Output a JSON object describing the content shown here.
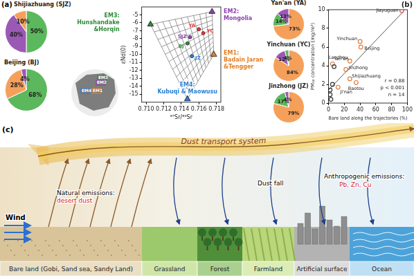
{
  "chart_data": [
    {
      "type": "pie",
      "title": "Shijiazhuang (SJZ)",
      "values": [
        50,
        40,
        10
      ],
      "colors": [
        "#5cb85c",
        "#9b59b6",
        "#f5a05a"
      ],
      "value_labels": [
        "50%",
        "40%",
        "10%"
      ],
      "data_labels": true
    },
    {
      "type": "pie",
      "title": "Beijing (BJ)",
      "values": [
        68,
        28,
        4
      ],
      "colors": [
        "#5cb85c",
        "#f5a05a",
        "#9b59b6"
      ],
      "value_labels": [
        "68%",
        "28%",
        "4%"
      ],
      "data_labels": true
    },
    {
      "type": "pie",
      "title": "Yan'an (YA)",
      "values": [
        73,
        14,
        13
      ],
      "colors": [
        "#f5a05a",
        "#5cb85c",
        "#9b59b6"
      ],
      "value_labels": [
        "73%",
        "14%",
        "13%"
      ],
      "data_labels": true
    },
    {
      "type": "pie",
      "title": "Yinchuan (YC)",
      "values": [
        84,
        12,
        4
      ],
      "colors": [
        "#f5a05a",
        "#9b59b6",
        "#5cb85c"
      ],
      "value_labels": [
        "84%",
        "12%",
        "4%"
      ],
      "data_labels": true
    },
    {
      "type": "pie",
      "title": "Jinzhong (JZ)",
      "values": [
        79,
        17,
        4
      ],
      "colors": [
        "#f5a05a",
        "#5cb85c",
        "#9b59b6"
      ],
      "value_labels": [
        "79%",
        "17%",
        "4%"
      ],
      "data_labels": true
    },
    {
      "type": "scatter",
      "label": "(a)",
      "x_label": "⁸⁷Sr/⁸⁶Sr",
      "y_label": "εNd(0)",
      "xlim": [
        0.7095,
        0.7185
      ],
      "ylim": [
        -16,
        -4
      ],
      "xticks": [
        {
          "value": 0.71,
          "label": "0.710"
        },
        {
          "value": 0.712,
          "label": "0.712"
        },
        {
          "value": 0.714,
          "label": "0.714"
        },
        {
          "value": 0.716,
          "label": "0.716"
        },
        {
          "value": 0.718,
          "label": "0.718"
        }
      ],
      "yticks": [
        -5,
        -6,
        -7,
        -8,
        -9,
        -10,
        -11,
        -12,
        -13,
        -14,
        -15
      ],
      "grid": false,
      "marker": "triangle",
      "end_members": [
        {
          "label": [
            "EM3:",
            "Hunshandake",
            "&Horqin"
          ],
          "map_label": "EM3",
          "x": 0.7105,
          "y": -6.2,
          "color": "#2e8b3a"
        },
        {
          "label": [
            "EM2:",
            "Mongolia"
          ],
          "map_label": "EM2",
          "x": 0.7175,
          "y": -4.6,
          "color": "#8e44ad"
        },
        {
          "label": [
            "EM1:",
            "Badain Jaran",
            "&Tengger"
          ],
          "map_label": "EM1",
          "x": 0.7177,
          "y": -10.0,
          "color": "#e67e22"
        },
        {
          "label": [
            "EM4:",
            "Kubuqi & Maowusu"
          ],
          "map_label": "EM4",
          "x": 0.7147,
          "y": -15.6,
          "color": "#2a7fd4"
        }
      ],
      "samples": {
        "labels": [
          "YC",
          "YA",
          "SJZ",
          "BJ",
          "JZ"
        ],
        "x": [
          0.7165,
          0.716,
          0.715,
          0.7147,
          0.7152
        ],
        "y": [
          -7.3,
          -6.8,
          -7.8,
          -8.6,
          -10.2
        ],
        "colors": [
          "#e53935",
          "#e53935",
          "#8e44ad",
          "#2e8b3a",
          "#2a7fd4"
        ]
      }
    },
    {
      "type": "scatter",
      "label": "(b)",
      "x_label": "Bare land along the trajectories (%)",
      "y_label": "PM₁₀ concentration (mg/m³)",
      "xlim": [
        0,
        100
      ],
      "ylim": [
        0,
        10
      ],
      "xticks": [
        0,
        20,
        40,
        60,
        80,
        100
      ],
      "yticks": [
        0,
        2,
        4,
        6,
        8,
        10
      ],
      "grid": false,
      "marker": "open_circle",
      "x": [
        93,
        40,
        41,
        27,
        5,
        7,
        22,
        27,
        12,
        35,
        2,
        2,
        3,
        5
      ],
      "y": [
        9.9,
        6.6,
        6.0,
        4.5,
        4.2,
        3.9,
        3.6,
        2.6,
        1.7,
        2.2,
        1.4,
        0.9,
        0.4,
        2.0
      ],
      "labels": [
        "Jiayuguan",
        "Yinchuan",
        "Beijing",
        "Lanzhou",
        "Yan'an",
        null,
        "Jinzhong",
        "Shijiazhuang",
        "Ji'nan",
        "Baotou",
        null,
        null,
        null,
        null
      ],
      "colors": [
        "#d9534f",
        "#e07b39",
        "#e07b39",
        "#e07b39",
        "#e07b39",
        "#333333",
        "#e07b39",
        "#e07b39",
        "#e07b39",
        "#e07b39",
        "#333333",
        "#333333",
        "#333333",
        "#333333"
      ],
      "fit_line": {
        "x": [
          0,
          95
        ],
        "y": [
          1.4,
          9.8
        ]
      },
      "annotation": [
        "r = 0.88",
        "p < 0.001",
        "n = 14"
      ]
    }
  ],
  "diagram": {
    "label": "(c)",
    "band_text": "Dust transport system",
    "natural_emissions": {
      "label": "Natural emissions:",
      "source": "desert dust"
    },
    "dust_fall": "Dust fall",
    "anthropogenic_emissions": {
      "label": "Anthropogenic emissions:",
      "elements": "Pb, Zn, Cu"
    },
    "wind": "Wind",
    "land_types": [
      "Bare land (Gobi, Sand sea, Sandy Land)",
      "Grassland",
      "Forest",
      "Farmland",
      "Artificial surface",
      "Ocean"
    ]
  }
}
